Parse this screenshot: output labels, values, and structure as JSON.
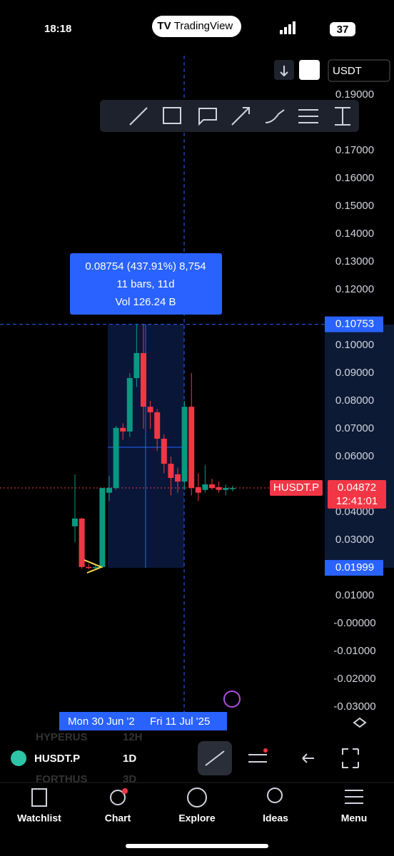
{
  "status": {
    "time": "18:18",
    "app": "TradingView",
    "battery": "37"
  },
  "currency": "USDT",
  "chart": {
    "yticks": [
      {
        "value": 0.19,
        "label": "0.19000"
      },
      {
        "value": 0.17,
        "label": "0.17000"
      },
      {
        "value": 0.16,
        "label": "0.16000"
      },
      {
        "value": 0.15,
        "label": "0.15000"
      },
      {
        "value": 0.14,
        "label": "0.14000"
      },
      {
        "value": 0.13,
        "label": "0.13000"
      },
      {
        "value": 0.12,
        "label": "0.12000"
      },
      {
        "value": 0.1,
        "label": "0.10000"
      },
      {
        "value": 0.09,
        "label": "0.09000"
      },
      {
        "value": 0.08,
        "label": "0.08000"
      },
      {
        "value": 0.07,
        "label": "0.07000"
      },
      {
        "value": 0.06,
        "label": "0.06000"
      },
      {
        "value": 0.04,
        "label": "0.04000"
      },
      {
        "value": 0.03,
        "label": "0.03000"
      },
      {
        "value": 0.01,
        "label": "0.01000"
      },
      {
        "value": 0,
        "label": "-0.00000"
      },
      {
        "value": -0.01,
        "label": "-0.01000"
      },
      {
        "value": -0.02,
        "label": "-0.02000"
      },
      {
        "value": -0.03,
        "label": "-0.03000"
      }
    ],
    "candles": [
      {
        "o": 0.0349,
        "h": 0.0536,
        "l": 0.0292,
        "c": 0.0377
      },
      {
        "o": 0.0377,
        "h": 0.038,
        "l": 0.0197,
        "c": 0.0203
      },
      {
        "o": 0.0203,
        "h": 0.0215,
        "l": 0.0195,
        "c": 0.02
      },
      {
        "o": 0.02,
        "h": 0.021,
        "l": 0.0195,
        "c": 0.0203
      },
      {
        "o": 0.0203,
        "h": 0.0487,
        "l": 0.0199,
        "c": 0.0487
      },
      {
        "o": 0.047,
        "h": 0.053,
        "l": 0.044,
        "c": 0.0487
      },
      {
        "o": 0.0487,
        "h": 0.071,
        "l": 0.048,
        "c": 0.0703
      },
      {
        "o": 0.0703,
        "h": 0.072,
        "l": 0.066,
        "c": 0.069
      },
      {
        "o": 0.069,
        "h": 0.09,
        "l": 0.067,
        "c": 0.0882
      },
      {
        "o": 0.0882,
        "h": 0.1075,
        "l": 0.085,
        "c": 0.0972
      },
      {
        "o": 0.0972,
        "h": 0.1075,
        "l": 0.07,
        "c": 0.0779
      },
      {
        "o": 0.0779,
        "h": 0.08,
        "l": 0.07,
        "c": 0.0759
      },
      {
        "o": 0.0759,
        "h": 0.077,
        "l": 0.062,
        "c": 0.0664
      },
      {
        "o": 0.0664,
        "h": 0.068,
        "l": 0.054,
        "c": 0.0574
      },
      {
        "o": 0.0574,
        "h": 0.06,
        "l": 0.046,
        "c": 0.0523
      },
      {
        "o": 0.0536,
        "h": 0.056,
        "l": 0.047,
        "c": 0.051
      },
      {
        "o": 0.051,
        "h": 0.08,
        "l": 0.048,
        "c": 0.0779
      },
      {
        "o": 0.0779,
        "h": 0.09,
        "l": 0.046,
        "c": 0.0487
      },
      {
        "o": 0.049,
        "h": 0.054,
        "l": 0.044,
        "c": 0.047
      },
      {
        "o": 0.048,
        "h": 0.057,
        "l": 0.047,
        "c": 0.05
      },
      {
        "o": 0.05,
        "h": 0.052,
        "l": 0.048,
        "c": 0.0487
      },
      {
        "o": 0.049,
        "h": 0.051,
        "l": 0.047,
        "c": 0.048
      },
      {
        "o": 0.048,
        "h": 0.05,
        "l": 0.046,
        "c": 0.0487
      },
      {
        "o": 0.0487,
        "h": 0.0495,
        "l": 0.0475,
        "c": 0.0487
      }
    ],
    "measure_high": 0.10753,
    "measure_low": 0.01999,
    "measure_text": [
      "0.08754 (437.91%) 8,754",
      "11 bars, 11d",
      "Vol 126.24 B"
    ],
    "symbol_label": "HUSDT.P",
    "last_price": 0.04872,
    "countdown": "12:41:01",
    "date_labels": [
      "Mon 30 Jun '2",
      "Fri 11 Jul '25"
    ]
  },
  "bottom": {
    "symbol": "HUSDT.P",
    "interval": "1D",
    "behind": [
      "HYPERUS",
      "12H",
      "FORTHUS",
      "3D"
    ]
  },
  "nav": [
    "Watchlist",
    "Chart",
    "Explore",
    "Ideas",
    "Menu"
  ]
}
